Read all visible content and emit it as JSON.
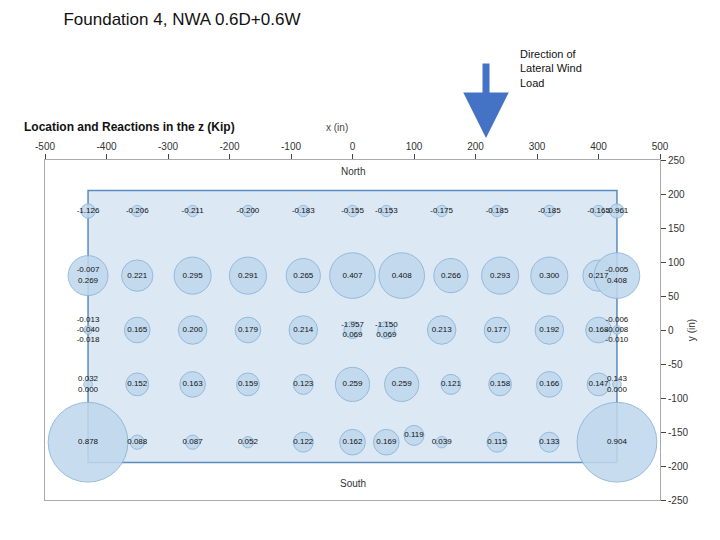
{
  "chart_data": {
    "type": "scatter",
    "title": "Foundation 4, NWA 0.6D+0.6W",
    "subtitle": "Location and Reactions in the z (Kip)",
    "xlabel": "x (in)",
    "ylabel": "y (in)",
    "xlim": [
      -500,
      500
    ],
    "ylim": [
      -250,
      250
    ],
    "xticks": [
      -500,
      -400,
      -300,
      -200,
      -100,
      0,
      100,
      200,
      300,
      400,
      500
    ],
    "yticks": [
      -250,
      -200,
      -150,
      -100,
      -50,
      0,
      50,
      100,
      150,
      200,
      250
    ],
    "grid": false,
    "bg_color": "#ffffff",
    "foundation": {
      "x": [
        -430,
        430
      ],
      "y": [
        -195,
        205
      ],
      "color": "#dde8f5",
      "edge_color": "#5a8cbf"
    },
    "marker": "circle",
    "color": "#c0d8ec",
    "edge_color": "#8ab4d8",
    "text_color": "#111111",
    "annotations": [
      {
        "text": "North",
        "x": 0,
        "y": 244
      },
      {
        "text": "South",
        "x": 0,
        "y": -215
      }
    ],
    "wind": {
      "text": "Direction of\nLateral Wind\nLoad",
      "color": "#4472c4"
    },
    "points": [
      {
        "x": -430,
        "y": 175,
        "size": 5,
        "labels": [
          "-1.126"
        ]
      },
      {
        "x": -350,
        "y": 175,
        "size": 4,
        "labels": [
          "-0.206"
        ]
      },
      {
        "x": -260,
        "y": 175,
        "size": 4,
        "labels": [
          "-0.211"
        ]
      },
      {
        "x": -170,
        "y": 175,
        "size": 4,
        "labels": [
          "-0.200"
        ]
      },
      {
        "x": -80,
        "y": 175,
        "size": 4,
        "labels": [
          "-0.183"
        ]
      },
      {
        "x": 0,
        "y": 175,
        "size": 4,
        "labels": [
          "-0.155"
        ]
      },
      {
        "x": 55,
        "y": 175,
        "size": 4,
        "labels": [
          "-0.153"
        ]
      },
      {
        "x": 145,
        "y": 175,
        "size": 4,
        "labels": [
          "-0.175"
        ]
      },
      {
        "x": 235,
        "y": 175,
        "size": 4,
        "labels": [
          "-0.185"
        ]
      },
      {
        "x": 320,
        "y": 175,
        "size": 4,
        "labels": [
          "-0.185"
        ]
      },
      {
        "x": 400,
        "y": 175,
        "size": 4,
        "labels": [
          "-0.165"
        ]
      },
      {
        "x": 430,
        "y": 175,
        "size": 5,
        "labels": [
          "-0.961"
        ]
      },
      {
        "x": -430,
        "y": 80,
        "size": 14,
        "labels": [
          "-0.007",
          "0.269"
        ]
      },
      {
        "x": -350,
        "y": 80,
        "size": 11,
        "labels": [
          "0.221"
        ]
      },
      {
        "x": -260,
        "y": 80,
        "size": 13,
        "labels": [
          "0.295"
        ]
      },
      {
        "x": -170,
        "y": 80,
        "size": 13,
        "labels": [
          "0.291"
        ]
      },
      {
        "x": -80,
        "y": 80,
        "size": 12,
        "labels": [
          "0.265"
        ]
      },
      {
        "x": 0,
        "y": 80,
        "size": 16,
        "labels": [
          "0.407"
        ]
      },
      {
        "x": 80,
        "y": 80,
        "size": 16,
        "labels": [
          "0.408"
        ]
      },
      {
        "x": 160,
        "y": 80,
        "size": 12,
        "labels": [
          "0.266"
        ]
      },
      {
        "x": 240,
        "y": 80,
        "size": 13,
        "labels": [
          "0.293"
        ]
      },
      {
        "x": 320,
        "y": 80,
        "size": 13,
        "labels": [
          "0.300"
        ]
      },
      {
        "x": 400,
        "y": 80,
        "size": 11,
        "labels": [
          "0.217"
        ]
      },
      {
        "x": 430,
        "y": 80,
        "size": 16,
        "labels": [
          "-0.005",
          "0.408"
        ]
      },
      {
        "x": -430,
        "y": 0,
        "size": 3,
        "labels": [
          "-0.013",
          "-0.040",
          "-0.018"
        ]
      },
      {
        "x": -350,
        "y": 0,
        "size": 9,
        "labels": [
          "0.165"
        ]
      },
      {
        "x": -260,
        "y": 0,
        "size": 10,
        "labels": [
          "0.200"
        ]
      },
      {
        "x": -170,
        "y": 0,
        "size": 9,
        "labels": [
          "0.179"
        ]
      },
      {
        "x": -80,
        "y": 0,
        "size": 10,
        "labels": [
          "0.214"
        ]
      },
      {
        "x": 0,
        "y": 0,
        "size": 6,
        "labels": [
          "-1.957",
          "0.069"
        ]
      },
      {
        "x": 55,
        "y": 0,
        "size": 6,
        "labels": [
          "-1.150",
          "0.069"
        ]
      },
      {
        "x": 145,
        "y": 0,
        "size": 10,
        "labels": [
          "0.213"
        ]
      },
      {
        "x": 235,
        "y": 0,
        "size": 9,
        "labels": [
          "0.177"
        ]
      },
      {
        "x": 320,
        "y": 0,
        "size": 10,
        "labels": [
          "0.192"
        ]
      },
      {
        "x": 400,
        "y": 0,
        "size": 9,
        "labels": [
          "0.168"
        ]
      },
      {
        "x": 430,
        "y": 0,
        "size": 3,
        "labels": [
          "-0.006",
          "-0.008",
          "-0.010"
        ]
      },
      {
        "x": -430,
        "y": -80,
        "size": 3,
        "labels": [
          "0.032",
          "0.000"
        ]
      },
      {
        "x": -350,
        "y": -80,
        "size": 8,
        "labels": [
          "0.152"
        ]
      },
      {
        "x": -260,
        "y": -80,
        "size": 9,
        "labels": [
          "0.163"
        ]
      },
      {
        "x": -170,
        "y": -80,
        "size": 8,
        "labels": [
          "0.159"
        ]
      },
      {
        "x": -80,
        "y": -80,
        "size": 7,
        "labels": [
          "0.123"
        ]
      },
      {
        "x": 0,
        "y": -80,
        "size": 12,
        "labels": [
          "0.259"
        ]
      },
      {
        "x": 80,
        "y": -80,
        "size": 12,
        "labels": [
          "0.259"
        ]
      },
      {
        "x": 160,
        "y": -80,
        "size": 7,
        "labels": [
          "0.121"
        ]
      },
      {
        "x": 240,
        "y": -80,
        "size": 8,
        "labels": [
          "0.158"
        ]
      },
      {
        "x": 320,
        "y": -80,
        "size": 9,
        "labels": [
          "0.166"
        ]
      },
      {
        "x": 400,
        "y": -80,
        "size": 8,
        "labels": [
          "0.147"
        ]
      },
      {
        "x": 430,
        "y": -80,
        "size": 3,
        "labels": [
          "0.143",
          "0.000"
        ]
      },
      {
        "x": -430,
        "y": -165,
        "size": 28,
        "labels": [
          "0.878"
        ]
      },
      {
        "x": -350,
        "y": -165,
        "size": 5,
        "labels": [
          "0.088"
        ]
      },
      {
        "x": -260,
        "y": -165,
        "size": 5,
        "labels": [
          "0.087"
        ]
      },
      {
        "x": -170,
        "y": -165,
        "size": 4,
        "labels": [
          "0.052"
        ]
      },
      {
        "x": -80,
        "y": -165,
        "size": 7,
        "labels": [
          "0.122"
        ]
      },
      {
        "x": 0,
        "y": -165,
        "size": 9,
        "labels": [
          "0.162"
        ]
      },
      {
        "x": 55,
        "y": -165,
        "size": 9,
        "labels": [
          "0.169"
        ]
      },
      {
        "x": 100,
        "y": -155,
        "size": 7,
        "labels": [
          "0.119"
        ]
      },
      {
        "x": 145,
        "y": -165,
        "size": 4,
        "labels": [
          "0.039"
        ]
      },
      {
        "x": 235,
        "y": -165,
        "size": 7,
        "labels": [
          "0.115"
        ]
      },
      {
        "x": 320,
        "y": -165,
        "size": 7,
        "labels": [
          "0.133"
        ]
      },
      {
        "x": 430,
        "y": -165,
        "size": 28,
        "labels": [
          "0.904"
        ]
      }
    ]
  }
}
